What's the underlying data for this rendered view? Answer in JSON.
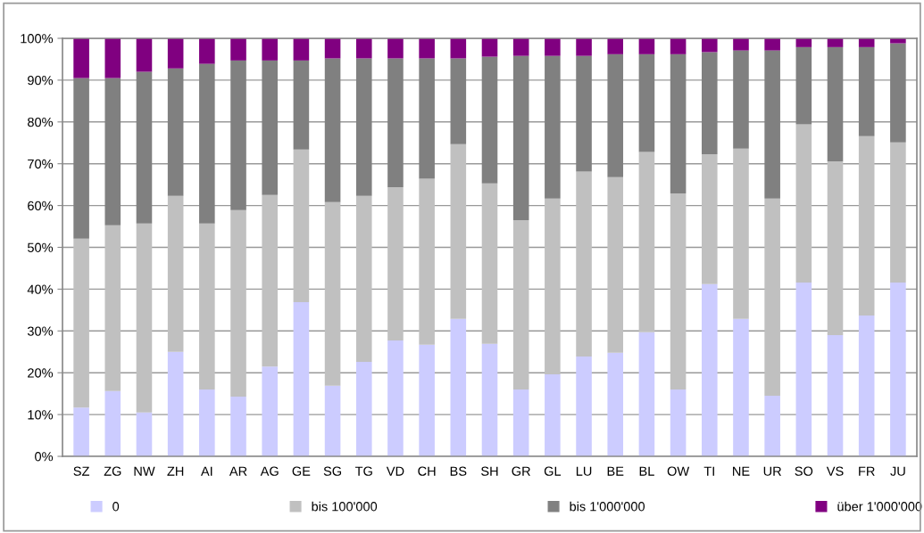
{
  "chart_data": {
    "type": "bar",
    "stacked": true,
    "categories": [
      "SZ",
      "ZG",
      "NW",
      "ZH",
      "AI",
      "AR",
      "AG",
      "GE",
      "SG",
      "TG",
      "VD",
      "CH",
      "BS",
      "SH",
      "GR",
      "GL",
      "LU",
      "BE",
      "BL",
      "OW",
      "TI",
      "NE",
      "UR",
      "SO",
      "VS",
      "FR",
      "JU"
    ],
    "series": [
      {
        "name": "0",
        "color": "#ccccff",
        "values": [
          11.7,
          15.6,
          10.5,
          25.0,
          16.0,
          14.3,
          21.5,
          36.9,
          16.9,
          22.6,
          27.7,
          26.7,
          32.9,
          26.9,
          16.0,
          19.6,
          23.9,
          24.8,
          29.7,
          16.0,
          41.2,
          32.9,
          14.5,
          41.6,
          29.0,
          33.7,
          41.6
        ]
      },
      {
        "name": "bis 100'000",
        "color": "#c0c0c0",
        "values": [
          40.4,
          39.7,
          45.2,
          37.3,
          39.7,
          44.6,
          41.0,
          36.5,
          43.9,
          39.7,
          36.7,
          39.7,
          41.8,
          38.4,
          40.5,
          42.1,
          44.2,
          42.0,
          43.1,
          46.9,
          31.1,
          40.7,
          47.2,
          37.8,
          41.6,
          42.9,
          33.5
        ]
      },
      {
        "name": "bis 1'000'000",
        "color": "#808080",
        "values": [
          38.4,
          35.2,
          36.3,
          30.5,
          38.2,
          35.8,
          32.2,
          21.3,
          34.4,
          32.9,
          30.8,
          28.8,
          20.5,
          30.3,
          39.3,
          34.1,
          27.7,
          29.4,
          23.4,
          33.3,
          24.4,
          23.5,
          35.4,
          18.5,
          27.3,
          21.3,
          23.7
        ]
      },
      {
        "name": "über 1'000'000",
        "color": "#800080",
        "values": [
          9.5,
          9.5,
          8.0,
          7.2,
          6.1,
          5.3,
          5.3,
          5.3,
          4.8,
          4.8,
          4.8,
          4.8,
          4.8,
          4.4,
          4.2,
          4.2,
          4.2,
          3.8,
          3.8,
          3.8,
          3.3,
          2.9,
          2.9,
          2.1,
          2.1,
          2.1,
          1.2
        ]
      }
    ],
    "ylim": [
      0,
      100
    ],
    "yticks": [
      {
        "value": 0,
        "label": "0%"
      },
      {
        "value": 10,
        "label": "10%"
      },
      {
        "value": 20,
        "label": "20%"
      },
      {
        "value": 30,
        "label": "30%"
      },
      {
        "value": 40,
        "label": "40%"
      },
      {
        "value": 50,
        "label": "50%"
      },
      {
        "value": 60,
        "label": "60%"
      },
      {
        "value": 70,
        "label": "70%"
      },
      {
        "value": 80,
        "label": "80%"
      },
      {
        "value": 90,
        "label": "90%"
      },
      {
        "value": 100,
        "label": "100%"
      }
    ],
    "grid": "y",
    "legend": "bottom"
  }
}
